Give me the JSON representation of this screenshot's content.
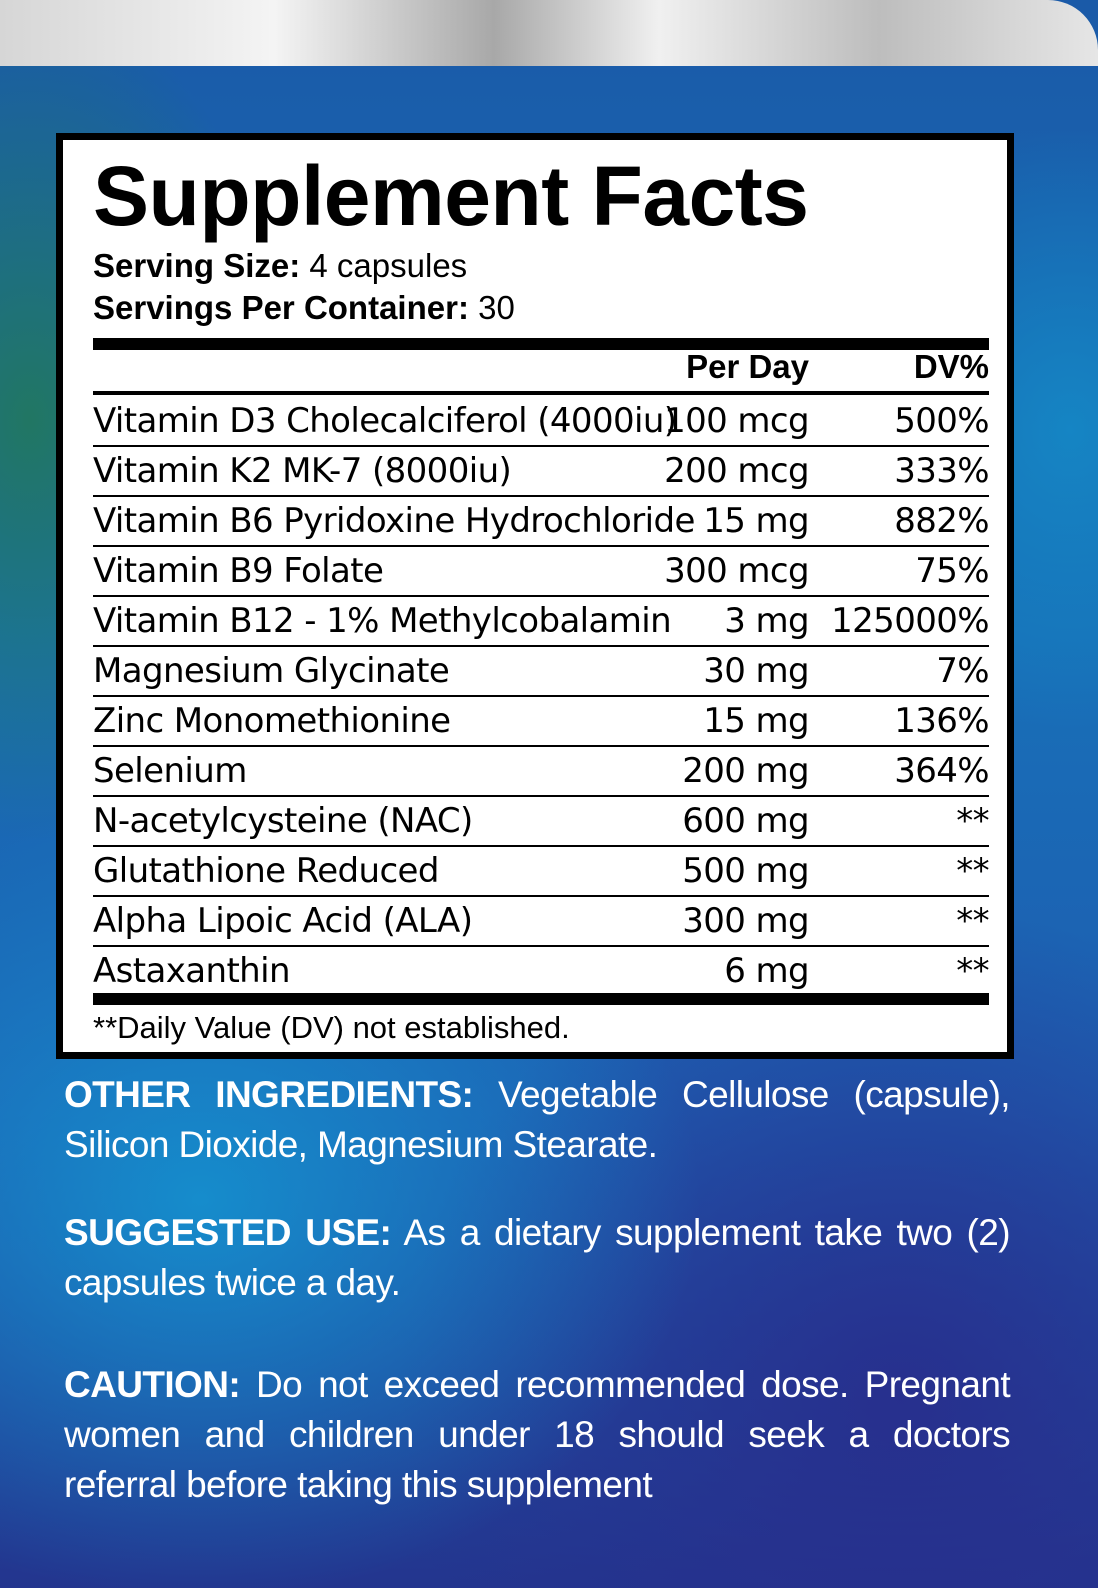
{
  "panel": {
    "title": "Supplement Facts",
    "serving_size_label": "Serving Size:",
    "serving_size_value": " 4 capsules",
    "servings_per_container_label": "Servings Per Container:",
    "servings_per_container_value": " 30",
    "header": {
      "per_day": "Per Day",
      "dv": "DV%"
    },
    "rows": [
      {
        "name": "Vitamin D3 Cholecalciferol (4000iu)",
        "amount": "100 mcg",
        "dv": "500%"
      },
      {
        "name": "Vitamin K2 MK-7 (8000iu)",
        "amount": "200 mcg",
        "dv": "333%"
      },
      {
        "name": "Vitamin B6 Pyridoxine Hydrochloride",
        "amount": "15 mg",
        "dv": "882%"
      },
      {
        "name": "Vitamin B9 Folate",
        "amount": "300 mcg",
        "dv": "75%"
      },
      {
        "name": "Vitamin B12 - 1% Methylcobalamin",
        "amount": "3 mg",
        "dv": "125000%"
      },
      {
        "name": "Magnesium Glycinate",
        "amount": "30 mg",
        "dv": "7%"
      },
      {
        "name": "Zinc Monomethionine",
        "amount": "15 mg",
        "dv": "136%"
      },
      {
        "name": "Selenium",
        "amount": "200 mg",
        "dv": "364%"
      },
      {
        "name": "N-acetylcysteine (NAC)",
        "amount": "600 mg",
        "dv": "**"
      },
      {
        "name": "Glutathione Reduced",
        "amount": "500 mg",
        "dv": "**"
      },
      {
        "name": "Alpha Lipoic Acid (ALA)",
        "amount": "300 mg",
        "dv": "**"
      },
      {
        "name": "Astaxanthin",
        "amount": "6 mg",
        "dv": "**"
      }
    ],
    "footnote": "**Daily Value (DV) not established."
  },
  "other_ingredients": {
    "label": "OTHER INGREDIENTS:",
    "text": " Vegetable Cellulose (capsule), Silicon Dioxide, Magnesium Stearate."
  },
  "suggested_use": {
    "label": "SUGGESTED USE:",
    "text": " As a dietary supplement take two (2) capsules twice a day."
  },
  "caution": {
    "label": "CAUTION:",
    "text": " Do not exceed recommended dose.  Pregnant women and children under 18 should seek a doctors referral before taking this supplement"
  },
  "colors": {
    "panel_bg": "#ffffff",
    "text_dark": "#000000",
    "text_light": "#ffffff",
    "bg_blue": "#1d3f96"
  }
}
